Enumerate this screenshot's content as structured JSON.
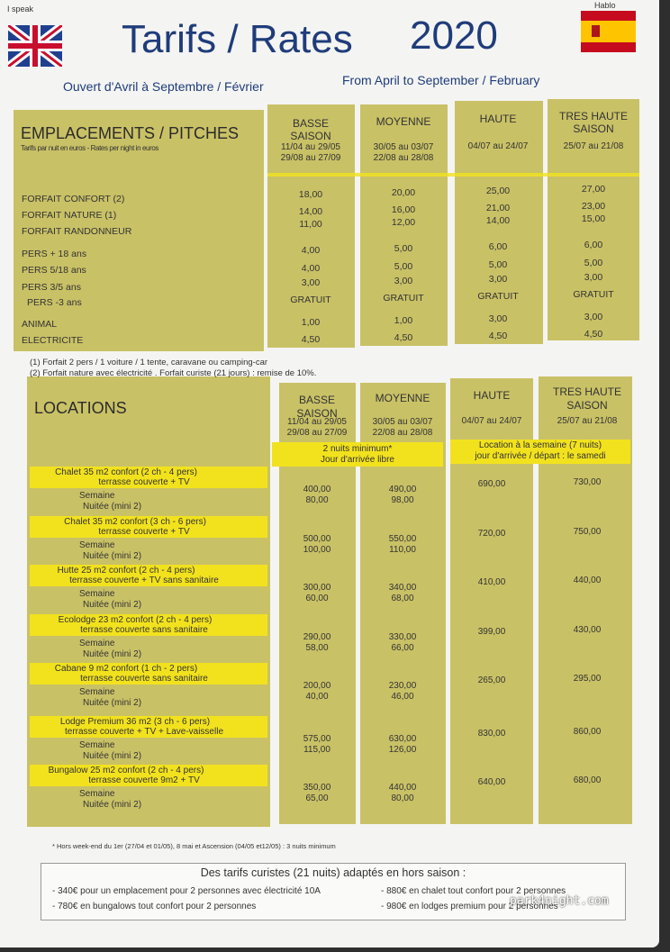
{
  "header": {
    "i_speak": "I speak",
    "title": "Tarifs / Rates",
    "year": "2020",
    "hablo": "Hablo",
    "subtitle_fr": "Ouvert d'Avril à Septembre / Février",
    "subtitle_en": "From April to September / February"
  },
  "pitches": {
    "title": "EMPLACEMENTS / PITCHES",
    "subtitle": "Tarifs par nuit en euros - Rates per night in euros",
    "columns": [
      {
        "name": "BASSE SAISON",
        "dates": [
          "11/04 au 29/05",
          "29/08 au 27/09"
        ]
      },
      {
        "name": "MOYENNE",
        "dates": [
          "30/05 au 03/07",
          "22/08 au 28/08"
        ]
      },
      {
        "name": "HAUTE",
        "dates": [
          "04/07 au 24/07"
        ]
      },
      {
        "name": "TRES HAUTE SAISON",
        "dates": [
          "25/07 au 21/08"
        ]
      }
    ],
    "rows": [
      {
        "label": "FORFAIT CONFORT (2)",
        "values": [
          "18,00",
          "20,00",
          "25,00",
          "27,00"
        ]
      },
      {
        "label": "FORFAIT NATURE (1)",
        "values": [
          "14,00",
          "16,00",
          "21,00",
          "23,00"
        ]
      },
      {
        "label": "FORFAIT RANDONNEUR",
        "values": [
          "11,00",
          "12,00",
          "14,00",
          "15,00"
        ]
      },
      {
        "label": "PERS + 18 ans",
        "values": [
          "4,00",
          "5,00",
          "6,00",
          "6,00"
        ]
      },
      {
        "label": "PERS 5/18 ans",
        "values": [
          "4,00",
          "5,00",
          "5,00",
          "5,00"
        ]
      },
      {
        "label": "PERS 3/5 ans",
        "values": [
          "3,00",
          "3,00",
          "3,00",
          "3,00"
        ]
      },
      {
        "label": "PERS -3 ans",
        "values": [
          "GRATUIT",
          "GRATUIT",
          "GRATUIT",
          "GRATUIT"
        ]
      },
      {
        "label": "ANIMAL",
        "values": [
          "1,00",
          "1,00",
          "3,00",
          "3,00"
        ]
      },
      {
        "label": "ELECTRICITE",
        "values": [
          "4,50",
          "4,50",
          "4,50",
          "4,50"
        ]
      }
    ]
  },
  "notes": [
    "(1) Forfait 2 pers / 1 voiture / 1 tente, caravane ou camping-car",
    "(2) Forfait nature avec électricité .    Forfait curiste (21 jours) : remise de 10%."
  ],
  "locations": {
    "title": "LOCATIONS",
    "columns": [
      {
        "name": "BASSE SAISON",
        "dates": [
          "11/04 au 29/05",
          "29/08 au 27/09"
        ]
      },
      {
        "name": "MOYENNE",
        "dates": [
          "30/05 au 03/07",
          "22/08 au 28/08"
        ]
      },
      {
        "name": "HAUTE",
        "dates": [
          "04/07 au 24/07"
        ]
      },
      {
        "name": "TRES HAUTE SAISON",
        "dates": [
          "25/07 au 21/08"
        ]
      }
    ],
    "booking_notes": [
      [
        "2 nuits minimum*",
        "Jour d'arrivée libre"
      ],
      [
        "Location à la semaine (7 nuits)",
        "jour d'arrivée / départ : le samedi"
      ]
    ],
    "rentals": [
      {
        "name": [
          "Chalet 35 m2 confort (2 ch - 4 pers)",
          "terrasse couverte + TV"
        ],
        "week_label": "Semaine",
        "night_label": "Nuitée (mini 2)",
        "week": [
          "400,00",
          "490,00",
          "690,00",
          "730,00"
        ],
        "night": [
          "80,00",
          "98,00"
        ]
      },
      {
        "name": [
          "Chalet 35 m2 confort (3 ch - 6 pers)",
          "terrasse couverte + TV"
        ],
        "week_label": "Semaine",
        "night_label": "Nuitée (mini 2)",
        "week": [
          "500,00",
          "550,00",
          "720,00",
          "750,00"
        ],
        "night": [
          "100,00",
          "110,00"
        ]
      },
      {
        "name": [
          "Hutte 25 m2 confort (2 ch - 4 pers)",
          "terrasse couverte + TV sans sanitaire"
        ],
        "week_label": "Semaine",
        "night_label": "Nuitée (mini 2)",
        "week": [
          "300,00",
          "340,00",
          "410,00",
          "440,00"
        ],
        "night": [
          "60,00",
          "68,00"
        ]
      },
      {
        "name": [
          "Ecolodge 23 m2 confort (2 ch - 4 pers)",
          "terrasse couverte sans sanitaire"
        ],
        "week_label": "Semaine",
        "night_label": "Nuitée (mini 2)",
        "week": [
          "290,00",
          "330,00",
          "399,00",
          "430,00"
        ],
        "night": [
          "58,00",
          "66,00"
        ]
      },
      {
        "name": [
          "Cabane 9 m2 confort (1 ch - 2 pers)",
          "terrasse couverte sans sanitaire"
        ],
        "week_label": "Semaine",
        "night_label": "Nuitée (mini 2)",
        "week": [
          "200,00",
          "230,00",
          "265,00",
          "295,00"
        ],
        "night": [
          "40,00",
          "46,00"
        ]
      },
      {
        "name": [
          "Lodge Premium 36 m2 (3 ch - 6 pers)",
          "terrasse couverte + TV + Lave-vaisselle"
        ],
        "week_label": "Semaine",
        "night_label": "Nuitée (mini 2)",
        "week": [
          "575,00",
          "630,00",
          "830,00",
          "860,00"
        ],
        "night": [
          "115,00",
          "126,00"
        ]
      },
      {
        "name": [
          "Bungalow 25 m2 confort (2 ch - 4 pers)",
          "terrasse couverte 9m2 + TV"
        ],
        "week_label": "Semaine",
        "night_label": "Nuitée (mini 2)",
        "week": [
          "350,00",
          "440,00",
          "640,00",
          "680,00"
        ],
        "night": [
          "65,00",
          "80,00"
        ]
      }
    ]
  },
  "footnote": "* Hors week-end du 1er (27/04 et 01/05), 8 mai et Ascension (04/05 et12/05) : 3 nuits minimum",
  "curistes": {
    "title": "Des tarifs curistes (21 nuits) adaptés en hors saison :",
    "items": [
      "- 340€ pour un emplacement pour 2 personnes avec électricité 10A",
      "- 880€ en chalet tout confort pour 2 personnes",
      "- 780€ en bungalows tout confort pour 2 personnes",
      "- 980€ en lodges premium pour 2 personnes"
    ]
  },
  "watermark": "park4night.com"
}
